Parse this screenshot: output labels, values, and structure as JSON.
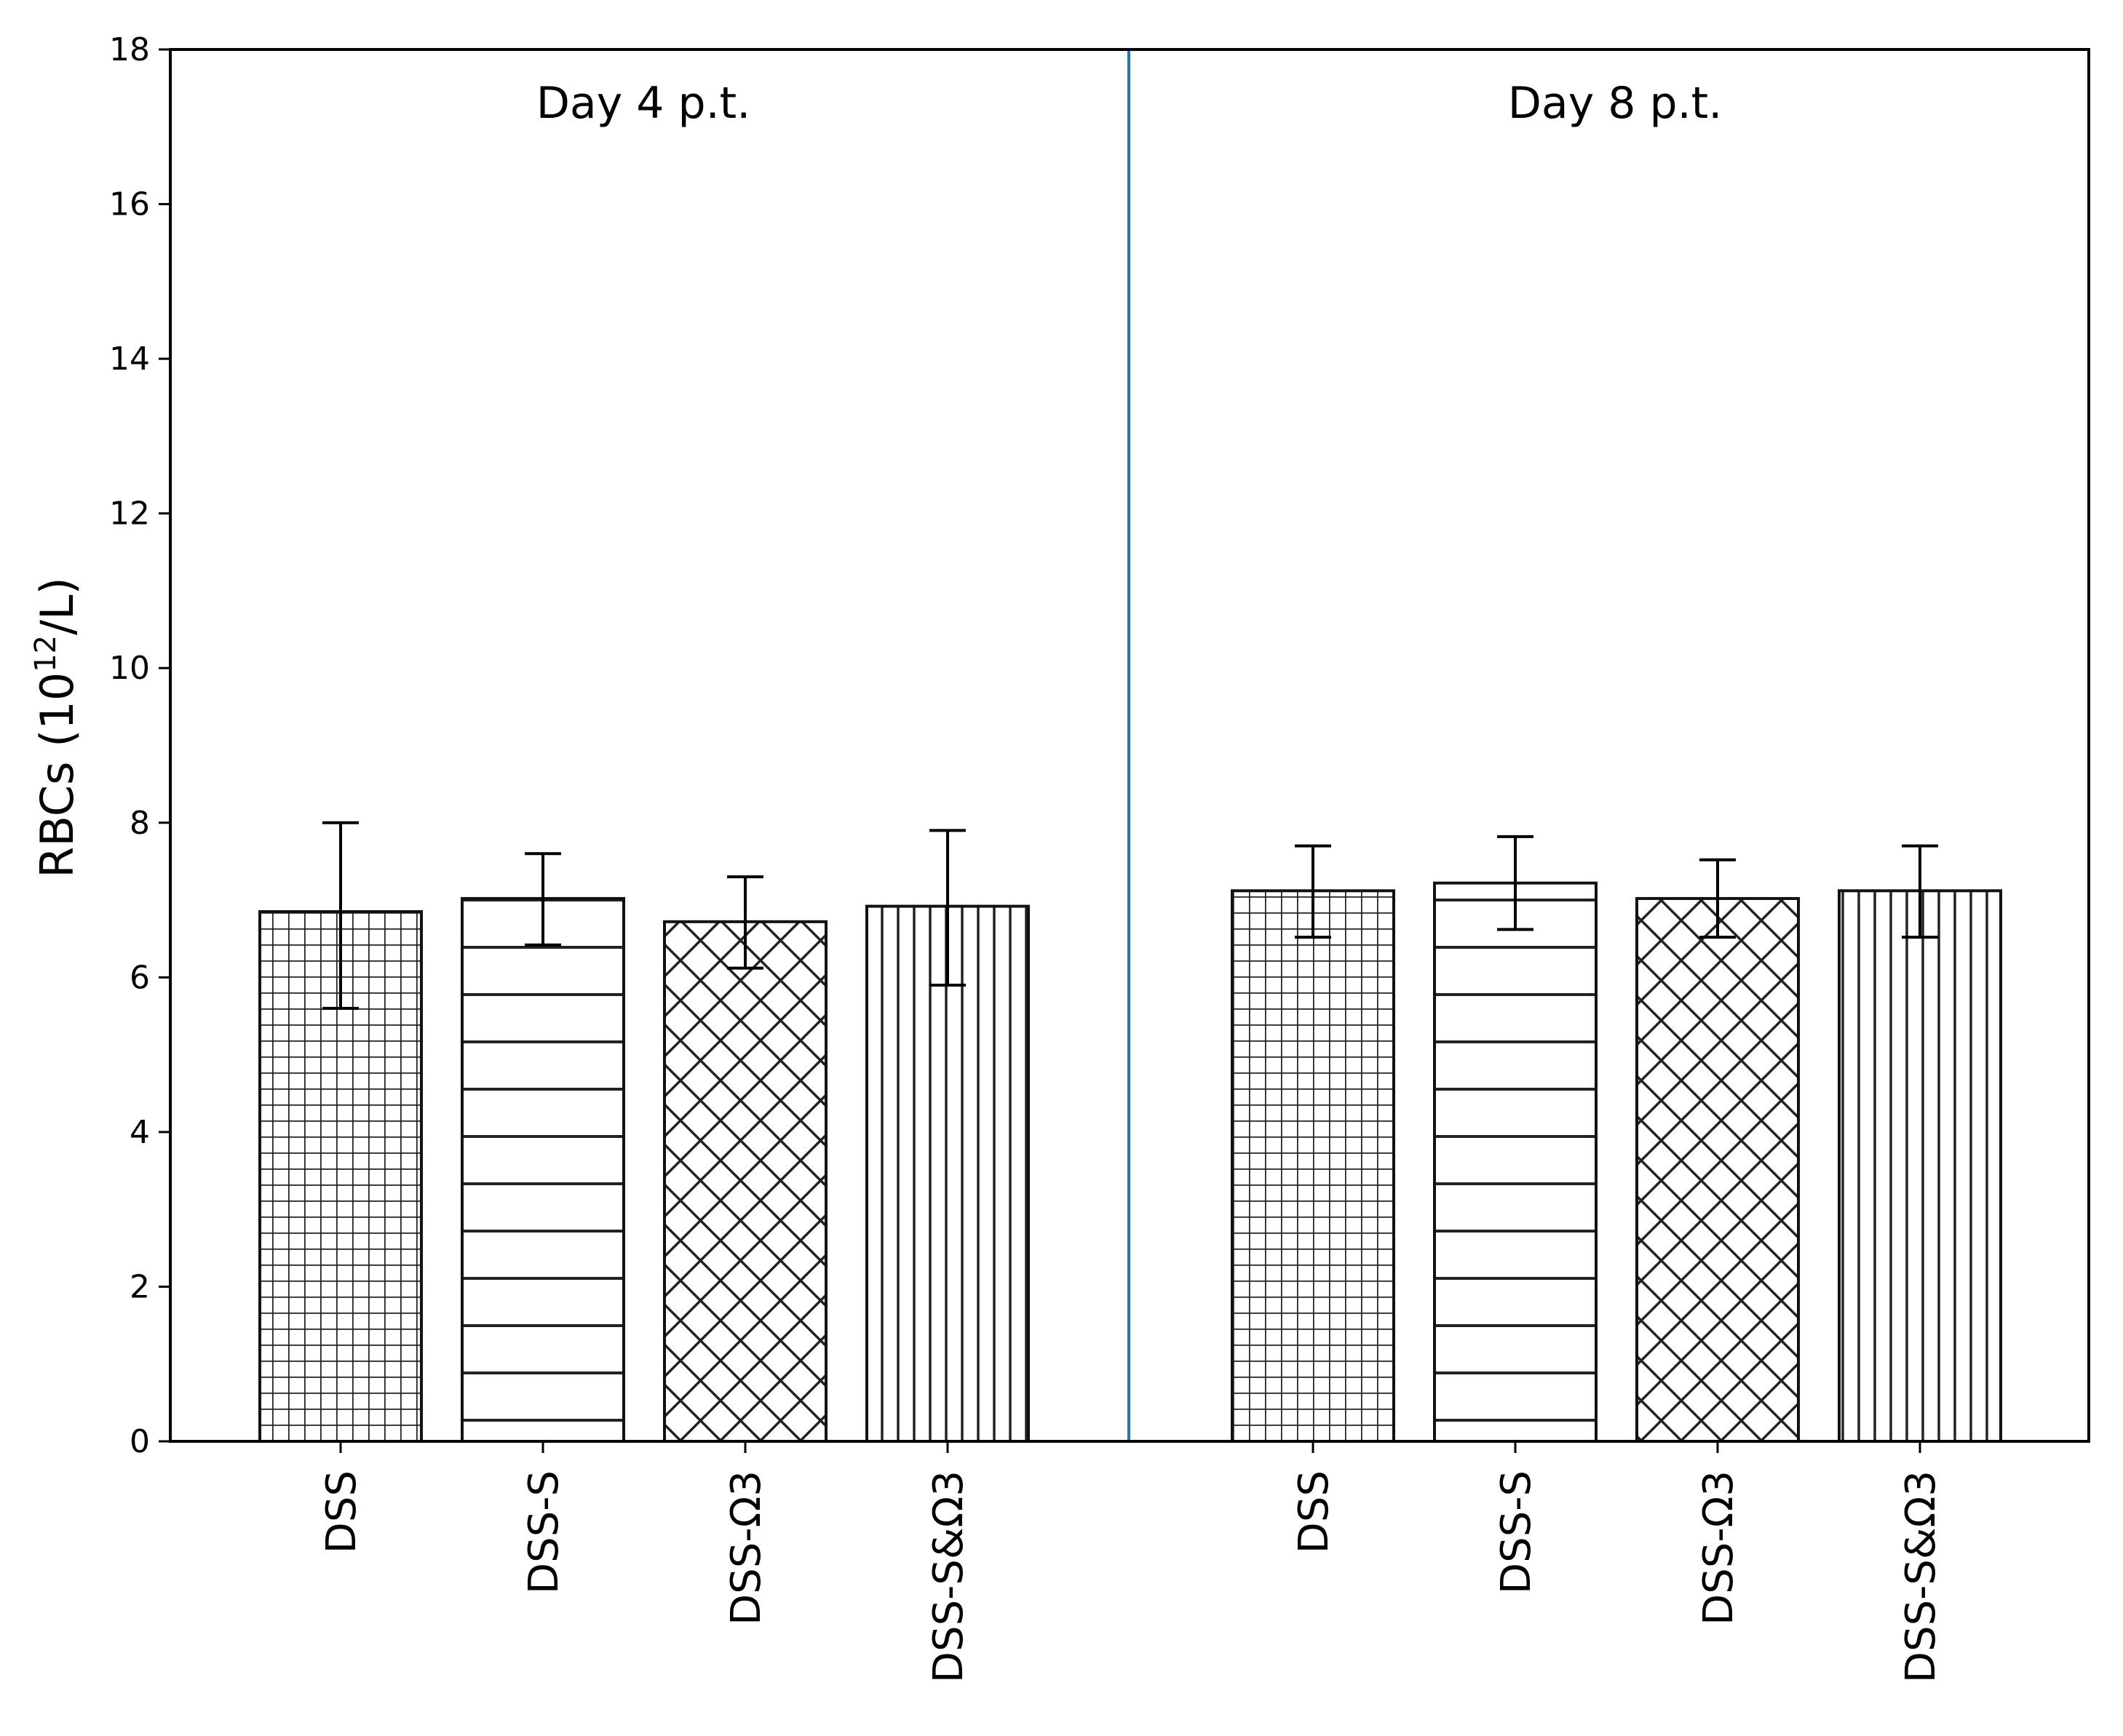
{
  "chart_data": {
    "type": "bar",
    "ylabel": "RBCs (10",
    "ylabel_sup": "12",
    "ylabel_tail": "/L)",
    "ylim": [
      0,
      18
    ],
    "yticks": [
      "0",
      "2",
      "4",
      "6",
      "8",
      "10",
      "12",
      "14",
      "16",
      "18"
    ],
    "divider_color": "#1f77b4",
    "groups": [
      {
        "label": "Day 4 p.t.",
        "bars": [
          {
            "category": "DSS",
            "value": 6.85,
            "error_low": 5.6,
            "error_high": 8.0,
            "hatch": "grid"
          },
          {
            "category": "DSS-S",
            "value": 7.02,
            "error_low": 6.42,
            "error_high": 7.6,
            "hatch": "horizontal"
          },
          {
            "category": "DSS-Ω3",
            "value": 6.72,
            "error_low": 6.12,
            "error_high": 7.3,
            "hatch": "cross-diagonal"
          },
          {
            "category": "DSS-S&Ω3",
            "value": 6.92,
            "error_low": 5.9,
            "error_high": 7.9,
            "hatch": "vertical"
          }
        ]
      },
      {
        "label": "Day 8 p.t.",
        "bars": [
          {
            "category": "DSS",
            "value": 7.12,
            "error_low": 6.52,
            "error_high": 7.7,
            "hatch": "grid"
          },
          {
            "category": "DSS-S",
            "value": 7.22,
            "error_low": 6.62,
            "error_high": 7.82,
            "hatch": "horizontal"
          },
          {
            "category": "DSS-Ω3",
            "value": 7.02,
            "error_low": 6.52,
            "error_high": 7.52,
            "hatch": "cross-diagonal"
          },
          {
            "category": "DSS-S&Ω3",
            "value": 7.12,
            "error_low": 6.52,
            "error_high": 7.7,
            "hatch": "vertical"
          }
        ]
      }
    ]
  }
}
